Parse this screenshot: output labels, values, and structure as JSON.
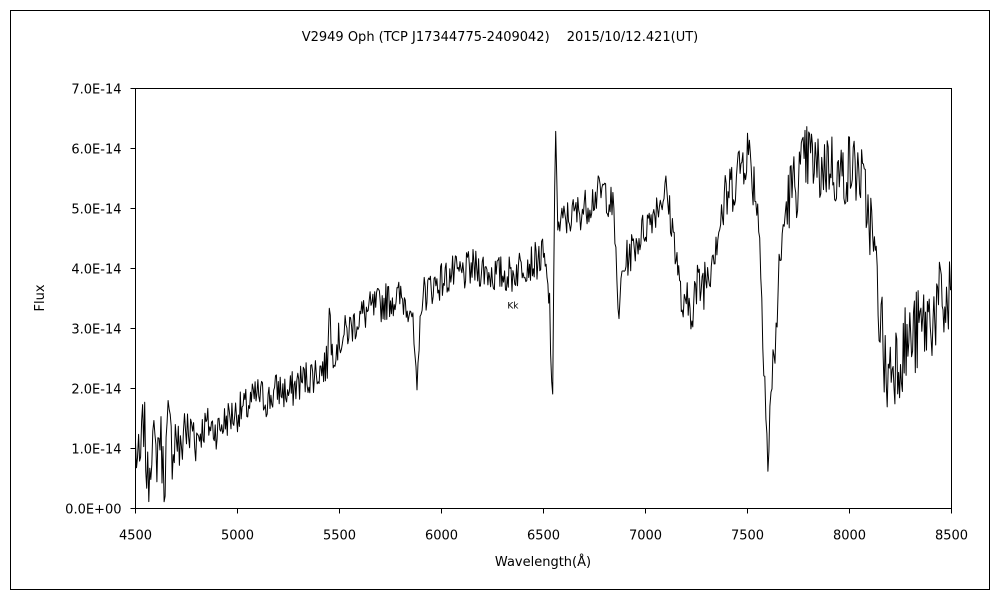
{
  "chart_data": {
    "type": "line",
    "title": "V2949 Oph (TCP J17344775-2409042)　 2015/10/12.421(UT)",
    "xlabel": "Wavelength(Å)",
    "ylabel": "Flux",
    "xlim": [
      4500,
      8500
    ],
    "ylim": [
      0,
      7e-14
    ],
    "x_ticks": [
      4500,
      5000,
      5500,
      6000,
      6500,
      7000,
      7500,
      8000,
      8500
    ],
    "x_tick_labels": [
      "4500",
      "5000",
      "5500",
      "6000",
      "6500",
      "7000",
      "7500",
      "8000",
      "8500"
    ],
    "y_ticks": [
      0,
      1e-14,
      2e-14,
      3e-14,
      4e-14,
      5e-14,
      6e-14,
      7e-14
    ],
    "y_tick_labels": [
      "0.0E+00",
      "1.0E-14",
      "2.0E-14",
      "3.0E-14",
      "4.0E-14",
      "5.0E-14",
      "6.0E-14",
      "7.0E-14"
    ],
    "grid": false,
    "legend": "none",
    "annotations": [
      {
        "text": "Kk",
        "x": 6350,
        "y": 3.2e-14
      }
    ],
    "series": [
      {
        "color": "#000000",
        "x": [
          4500,
          4520,
          4540,
          4560,
          4580,
          4600,
          4620,
          4640,
          4660,
          4680,
          4700,
          4720,
          4740,
          4760,
          4780,
          4800,
          4850,
          4900,
          4950,
          5000,
          5050,
          5100,
          5150,
          5200,
          5250,
          5300,
          5350,
          5400,
          5440,
          5450,
          5460,
          5500,
          5550,
          5600,
          5650,
          5700,
          5750,
          5800,
          5850,
          5870,
          5880,
          5890,
          5900,
          5920,
          5950,
          6000,
          6050,
          6100,
          6150,
          6200,
          6250,
          6300,
          6350,
          6400,
          6450,
          6500,
          6530,
          6545,
          6550,
          6555,
          6560,
          6565,
          6570,
          6580,
          6600,
          6650,
          6700,
          6750,
          6800,
          6840,
          6860,
          6870,
          6880,
          6900,
          6950,
          7000,
          7050,
          7100,
          7150,
          7180,
          7200,
          7250,
          7300,
          7350,
          7400,
          7450,
          7500,
          7550,
          7570,
          7590,
          7600,
          7610,
          7620,
          7640,
          7660,
          7680,
          7700,
          7750,
          7800,
          7850,
          7900,
          7950,
          8000,
          8050,
          8100,
          8140,
          8160,
          8180,
          8200,
          8250,
          8300,
          8350,
          8400,
          8450,
          8480,
          8500
        ],
        "y": [
          1e-14,
          6e-15,
          1.5e-14,
          4e-15,
          1.2e-14,
          8e-15,
          1.3e-14,
          5e-15,
          1.4e-14,
          1e-14,
          1.3e-14,
          8e-15,
          1.5e-14,
          1.1e-14,
          1.4e-14,
          1.2e-14,
          1.4e-14,
          1.3e-14,
          1.5e-14,
          1.6e-14,
          1.7e-14,
          1.9e-14,
          1.8e-14,
          2e-14,
          1.9e-14,
          2.1e-14,
          2.2e-14,
          2.3e-14,
          2.4e-14,
          3.6e-14,
          2.6e-14,
          2.8e-14,
          3e-14,
          3.2e-14,
          3.3e-14,
          3.4e-14,
          3.5e-14,
          3.5e-14,
          3.4e-14,
          2.5e-14,
          1.7e-14,
          2.6e-14,
          3.5e-14,
          3.6e-14,
          3.7e-14,
          3.8e-14,
          3.9e-14,
          3.9e-14,
          4e-14,
          4e-14,
          3.9e-14,
          3.9e-14,
          3.9e-14,
          4.1e-14,
          4.1e-14,
          4.2e-14,
          3.4e-14,
          1.6e-14,
          3.5e-14,
          5.5e-14,
          6.5e-14,
          5.6e-14,
          4.6e-14,
          4.7e-14,
          4.8e-14,
          4.9e-14,
          5e-14,
          5.2e-14,
          5.3e-14,
          5e-14,
          4e-14,
          2.9e-14,
          3.8e-14,
          4.1e-14,
          4.4e-14,
          4.7e-14,
          5e-14,
          5.3e-14,
          4.3e-14,
          3.3e-14,
          3.3e-14,
          3.6e-14,
          3.9e-14,
          4.6e-14,
          5.2e-14,
          5.6e-14,
          6e-14,
          5.1e-14,
          3.6e-14,
          1.8e-14,
          6e-15,
          1.5e-14,
          2.1e-14,
          3e-14,
          4.1e-14,
          4.8e-14,
          5.2e-14,
          5.5e-14,
          5.9e-14,
          5.6e-14,
          5.8e-14,
          5.5e-14,
          5.7e-14,
          5.6e-14,
          4.8e-14,
          3.6e-14,
          2.9e-14,
          2.1e-14,
          2.4e-14,
          2.6e-14,
          2.8e-14,
          3e-14,
          3.2e-14,
          3.4e-14,
          3.3e-14,
          3.7e-14
        ]
      }
    ]
  }
}
